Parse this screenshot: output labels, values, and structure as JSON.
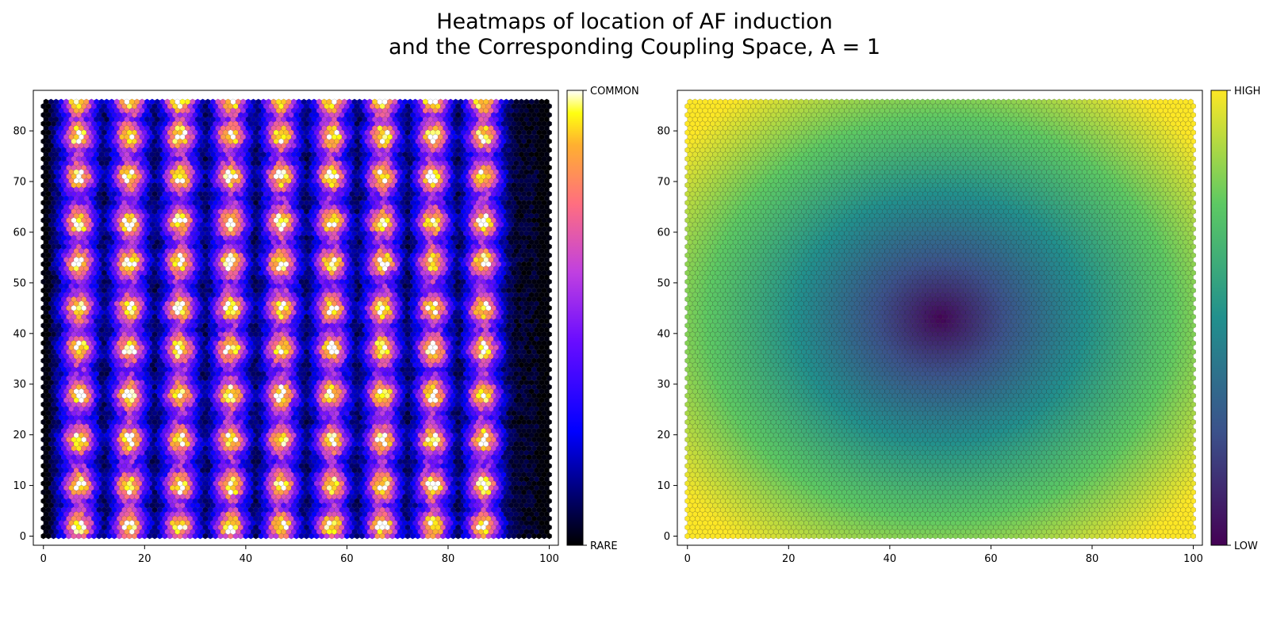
{
  "title_line1": "Heatmaps of location of AF induction",
  "title_line2": "and the Corresponding Coupling Space, A = 1",
  "chart_data": [
    {
      "type": "heatmap",
      "subtype": "hexbin",
      "description": "Left panel: frequency of AF induction location on a hexagonal grid; intensity concentrated in vertical columns near x = 7, 17, 27, 37, 47, 57, 67, 77, 87 with periodic hot spots.",
      "xlim": [
        0,
        100
      ],
      "ylim": [
        0,
        86
      ],
      "xticks": [
        0,
        20,
        40,
        60,
        80,
        100
      ],
      "yticks": [
        0,
        10,
        20,
        30,
        40,
        50,
        60,
        70,
        80
      ],
      "colormap": "gnuplot2",
      "colorbar": {
        "low_label": "RARE",
        "high_label": "COMMON"
      },
      "hotspot_columns_x": [
        7,
        17,
        27,
        37,
        47,
        57,
        67,
        77,
        87
      ],
      "hotspot_rows_y": [
        2,
        10,
        19,
        28,
        37,
        45,
        54,
        62,
        71,
        79,
        86
      ]
    },
    {
      "type": "heatmap",
      "subtype": "hexbin",
      "description": "Right panel: coupling space, lowest at the centre (x ~ 50, y ~ 43) rising to highest in the four corners.",
      "xlim": [
        0,
        100
      ],
      "ylim": [
        0,
        86
      ],
      "xticks": [
        0,
        20,
        40,
        60,
        80,
        100
      ],
      "yticks": [
        0,
        10,
        20,
        30,
        40,
        50,
        60,
        70,
        80
      ],
      "colormap": "viridis",
      "colorbar": {
        "low_label": "LOW",
        "high_label": "HIGH"
      },
      "minimum_at": [
        50,
        43
      ]
    }
  ]
}
